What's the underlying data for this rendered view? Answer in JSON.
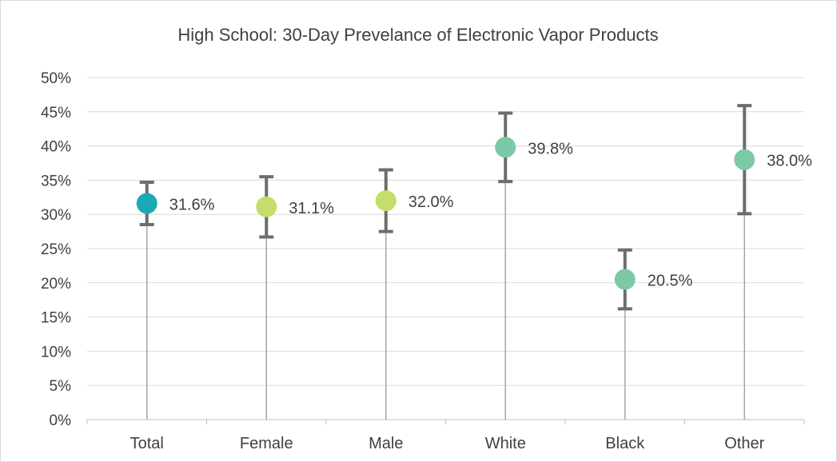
{
  "chart_data": {
    "type": "scatter",
    "title": "High School: 30-Day Prevelance of Electronic Vapor Products",
    "xlabel": "",
    "ylabel": "",
    "ylim": [
      0,
      50
    ],
    "yticks": [
      0,
      5,
      10,
      15,
      20,
      25,
      30,
      35,
      40,
      45,
      50
    ],
    "ytick_suffix": "%",
    "grid": true,
    "legend": "none",
    "categories": [
      "Total",
      "Female",
      "Male",
      "White",
      "Black",
      "Other"
    ],
    "values": [
      31.6,
      31.1,
      32.0,
      39.8,
      20.5,
      38.0
    ],
    "value_labels": [
      "31.6%",
      "31.1%",
      "32.0%",
      "39.8%",
      "20.5%",
      "38.0%"
    ],
    "error_low": [
      28.5,
      26.7,
      27.5,
      34.8,
      16.2,
      30.1
    ],
    "error_high": [
      34.7,
      35.5,
      36.5,
      44.8,
      24.8,
      45.9
    ],
    "point_colors": [
      "#1ba9b5",
      "#c5dd6a",
      "#c5dd6a",
      "#7cc9a8",
      "#7cc9a8",
      "#7cc9a8"
    ],
    "colors": {
      "gridline": "#d9d9d9",
      "axis": "#bfbfbf",
      "dropline": "#a6a6a6",
      "errorbar": "#6d6d6d",
      "text": "#404040"
    }
  }
}
